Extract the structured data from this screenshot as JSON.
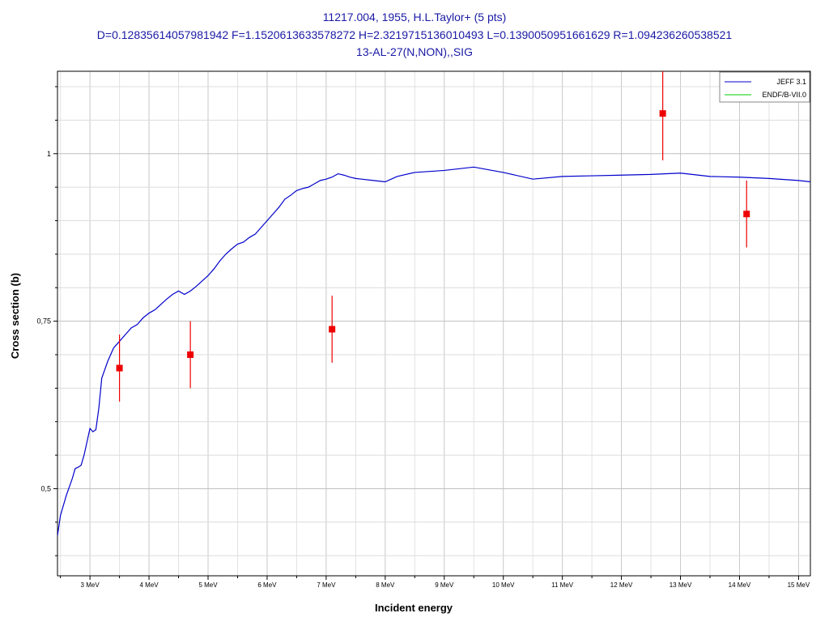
{
  "chart_data": {
    "type": "scatter",
    "title_lines": [
      "11217.004, 1955, H.L.Taylor+ (5 pts)",
      "D=0.12835614057981942 F=1.1520613633578272 H=2.3219715136010493 L=0.1390050951661629 R=1.094236260538521",
      "13-AL-27(N,NON),,SIG"
    ],
    "xlabel": "Incident energy",
    "ylabel": "Cross section (b)",
    "xlim": [
      2.45,
      15.2
    ],
    "ylim": [
      0.37,
      1.123
    ],
    "x_ticks": [
      3,
      4,
      5,
      6,
      7,
      8,
      9,
      10,
      11,
      12,
      13,
      14,
      15
    ],
    "x_tick_labels": [
      "3 MeV",
      "4 MeV",
      "5 MeV",
      "6 MeV",
      "7 MeV",
      "8 MeV",
      "9 MeV",
      "10 MeV",
      "11 MeV",
      "12 MeV",
      "13 MeV",
      "14 MeV",
      "15 MeV"
    ],
    "y_ticks": [
      0.5,
      0.75,
      1
    ],
    "y_tick_labels": [
      "0,5",
      "0,75",
      "1"
    ],
    "grid": true,
    "legend_position": "top-right",
    "series": [
      {
        "name": "JEFF 3.1",
        "kind": "line",
        "color": "#0000cc",
        "x": [
          2.45,
          2.5,
          2.6,
          2.7,
          2.75,
          2.8,
          2.85,
          2.9,
          3.0,
          3.05,
          3.1,
          3.15,
          3.2,
          3.3,
          3.4,
          3.5,
          3.6,
          3.7,
          3.8,
          3.9,
          4.0,
          4.1,
          4.2,
          4.3,
          4.4,
          4.5,
          4.6,
          4.7,
          4.8,
          4.9,
          5.0,
          5.1,
          5.2,
          5.3,
          5.4,
          5.5,
          5.6,
          5.7,
          5.8,
          5.9,
          6.0,
          6.1,
          6.2,
          6.3,
          6.4,
          6.5,
          6.6,
          6.7,
          6.8,
          6.9,
          7.0,
          7.1,
          7.2,
          7.3,
          7.4,
          7.5,
          7.6,
          7.8,
          8.0,
          8.2,
          8.5,
          9.0,
          9.5,
          10.0,
          10.5,
          11.0,
          11.5,
          12.0,
          12.5,
          13.0,
          13.5,
          14.0,
          14.5,
          15.0,
          15.2
        ],
        "y": [
          0.43,
          0.46,
          0.49,
          0.515,
          0.53,
          0.532,
          0.535,
          0.55,
          0.59,
          0.585,
          0.588,
          0.62,
          0.665,
          0.69,
          0.71,
          0.72,
          0.73,
          0.74,
          0.745,
          0.755,
          0.762,
          0.767,
          0.775,
          0.783,
          0.79,
          0.795,
          0.79,
          0.795,
          0.802,
          0.81,
          0.818,
          0.828,
          0.84,
          0.85,
          0.858,
          0.865,
          0.868,
          0.875,
          0.88,
          0.89,
          0.9,
          0.91,
          0.92,
          0.932,
          0.938,
          0.945,
          0.948,
          0.95,
          0.955,
          0.96,
          0.962,
          0.965,
          0.97,
          0.968,
          0.965,
          0.963,
          0.962,
          0.96,
          0.958,
          0.966,
          0.972,
          0.975,
          0.98,
          0.972,
          0.962,
          0.966,
          0.967,
          0.968,
          0.969,
          0.971,
          0.966,
          0.965,
          0.963,
          0.96,
          0.958
        ]
      },
      {
        "name": "ENDF/B-VII.0",
        "kind": "line",
        "color": "#00cc00",
        "x": [],
        "y": []
      },
      {
        "name": "",
        "kind": "points",
        "color": "#ee0000",
        "x": [
          3.5,
          4.7,
          7.1,
          12.7,
          14.12
        ],
        "y": [
          0.68,
          0.7,
          0.738,
          1.06,
          0.91
        ],
        "yerr": [
          0.05,
          0.05,
          0.05,
          0.07,
          0.05
        ]
      }
    ]
  }
}
